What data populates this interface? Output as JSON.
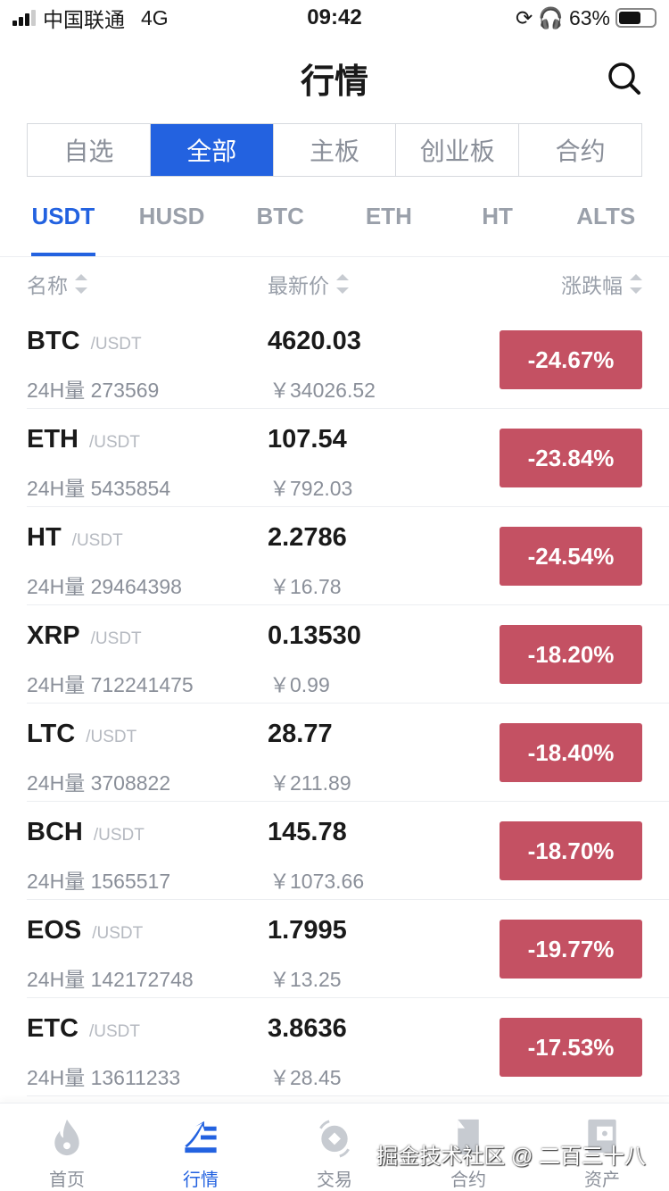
{
  "status": {
    "carrier": "中国联通",
    "network": "4G",
    "time": "09:42",
    "battery": "63%",
    "battery_level": 0.63
  },
  "header": {
    "title": "行情",
    "search_icon": "search-icon"
  },
  "segments": [
    {
      "label": "自选"
    },
    {
      "label": "全部",
      "active": true
    },
    {
      "label": "主板"
    },
    {
      "label": "创业板"
    },
    {
      "label": "合约"
    }
  ],
  "quote_tabs": [
    {
      "label": "USDT",
      "active": true
    },
    {
      "label": "HUSD"
    },
    {
      "label": "BTC"
    },
    {
      "label": "ETH"
    },
    {
      "label": "HT"
    },
    {
      "label": "ALTS"
    }
  ],
  "columns": {
    "name": "名称",
    "price": "最新价",
    "change": "涨跌幅"
  },
  "colors": {
    "accent": "#2362e0",
    "down": "#c45163"
  },
  "rows": [
    {
      "symbol": "BTC",
      "quote": "/USDT",
      "volume": "24H量 273569",
      "price": "4620.03",
      "cny": "￥34026.52",
      "change": "-24.67%"
    },
    {
      "symbol": "ETH",
      "quote": "/USDT",
      "volume": "24H量 5435854",
      "price": "107.54",
      "cny": "￥792.03",
      "change": "-23.84%"
    },
    {
      "symbol": "HT",
      "quote": "/USDT",
      "volume": "24H量 29464398",
      "price": "2.2786",
      "cny": "￥16.78",
      "change": "-24.54%"
    },
    {
      "symbol": "XRP",
      "quote": "/USDT",
      "volume": "24H量 712241475",
      "price": "0.13530",
      "cny": "￥0.99",
      "change": "-18.20%"
    },
    {
      "symbol": "LTC",
      "quote": "/USDT",
      "volume": "24H量 3708822",
      "price": "28.77",
      "cny": "￥211.89",
      "change": "-18.40%"
    },
    {
      "symbol": "BCH",
      "quote": "/USDT",
      "volume": "24H量 1565517",
      "price": "145.78",
      "cny": "￥1073.66",
      "change": "-18.70%"
    },
    {
      "symbol": "EOS",
      "quote": "/USDT",
      "volume": "24H量 142172748",
      "price": "1.7995",
      "cny": "￥13.25",
      "change": "-19.77%"
    },
    {
      "symbol": "ETC",
      "quote": "/USDT",
      "volume": "24H量 13611233",
      "price": "3.8636",
      "cny": "￥28.45",
      "change": "-17.53%"
    }
  ],
  "nav": [
    {
      "label": "首页",
      "icon": "flame-icon"
    },
    {
      "label": "行情",
      "icon": "chart-icon",
      "active": true
    },
    {
      "label": "交易",
      "icon": "exchange-icon"
    },
    {
      "label": "合约",
      "icon": "document-icon"
    },
    {
      "label": "资产",
      "icon": "wallet-icon"
    }
  ],
  "watermark": "掘金技术社区 @ 二百三十八"
}
